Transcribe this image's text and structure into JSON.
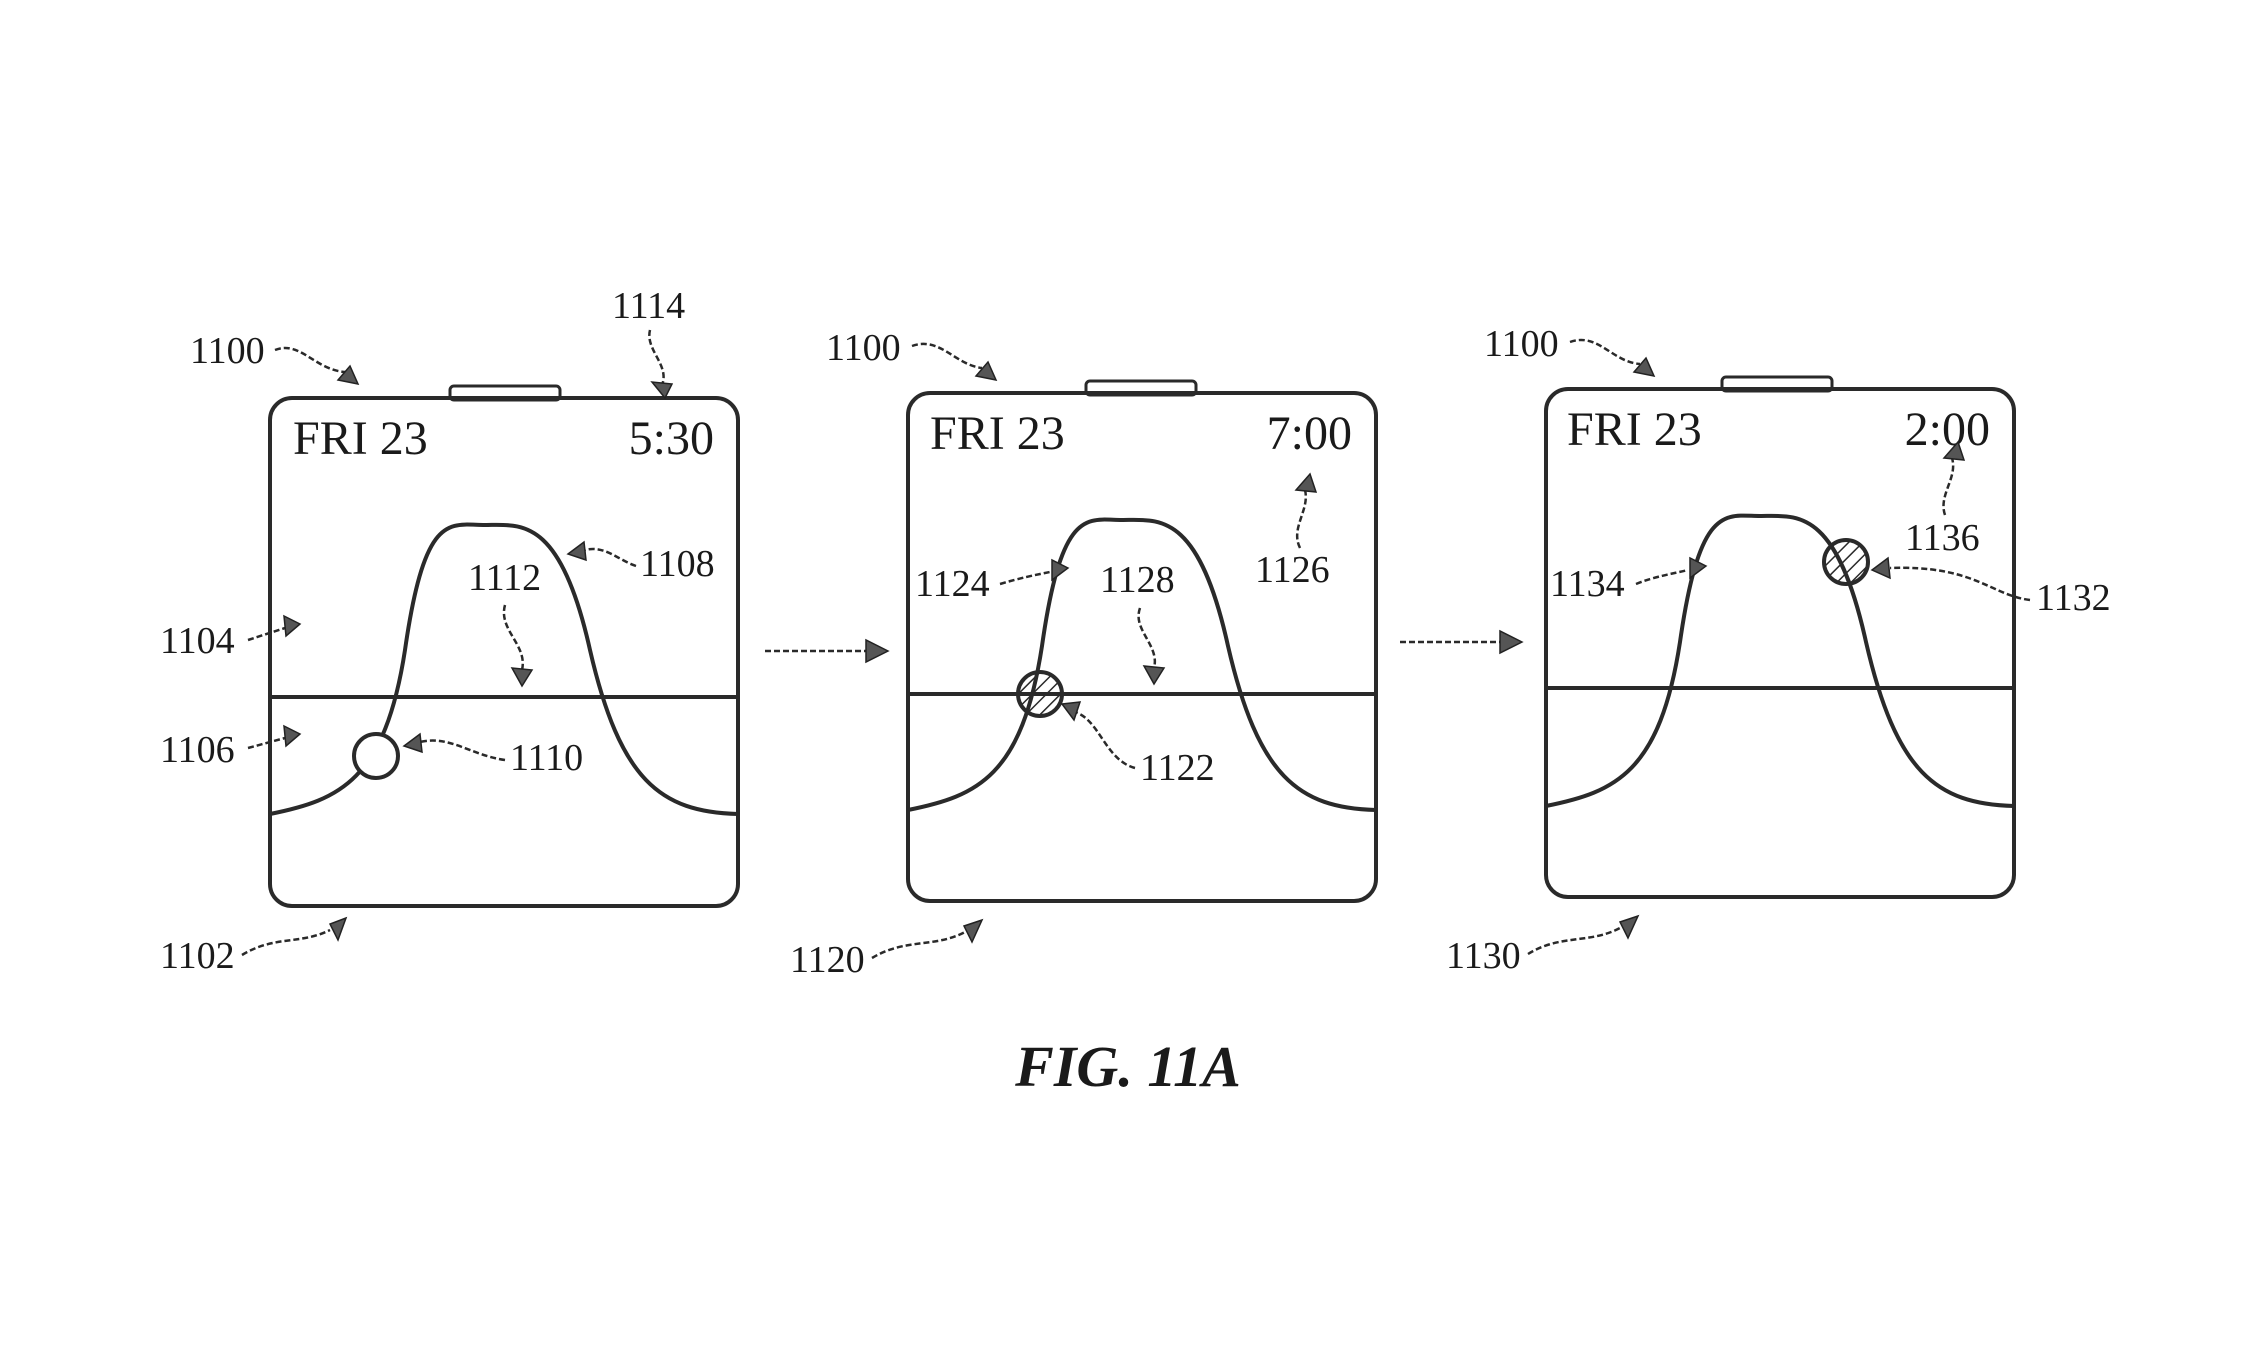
{
  "caption": "FIG. 11A",
  "panels": [
    {
      "device_ref": "1100",
      "screen_ref": "1102",
      "date": "FRI 23",
      "time": "5:30",
      "labels": {
        "time": "1114",
        "upper_region": "1104",
        "lower_region": "1106",
        "curve": "1108",
        "indicator": "1110",
        "horizon": "1112"
      },
      "indicator_style": "hollow",
      "indicator_phase": 0.22
    },
    {
      "device_ref": "1100",
      "screen_ref": "1120",
      "date": "FRI 23",
      "time": "7:00",
      "labels": {
        "time": "1126",
        "curve": "1124",
        "indicator": "1122",
        "horizon": "1128"
      },
      "indicator_style": "hatched",
      "indicator_phase": 0.28
    },
    {
      "device_ref": "1100",
      "screen_ref": "1130",
      "date": "FRI 23",
      "time": "2:00",
      "labels": {
        "time": "1136",
        "curve": "1134",
        "indicator": "1132"
      },
      "indicator_style": "hatched",
      "indicator_phase": 0.62
    }
  ]
}
